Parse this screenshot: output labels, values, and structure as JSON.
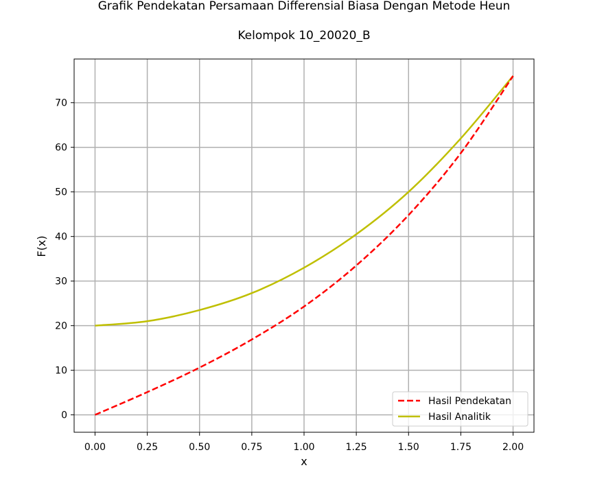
{
  "chart_data": {
    "type": "line",
    "title": "Grafik Pendekatan Persamaan Differensial Biasa Dengan Metode Heun",
    "subtitle": "Kelompok 10_20020_B",
    "xlabel": "x",
    "ylabel": "F(x)",
    "xlim": [
      -0.1,
      2.1
    ],
    "ylim": [
      -3.9,
      79.8
    ],
    "xticks": [
      0.0,
      0.25,
      0.5,
      0.75,
      1.0,
      1.25,
      1.5,
      1.75,
      2.0
    ],
    "xtick_labels": [
      "0.00",
      "0.25",
      "0.50",
      "0.75",
      "1.00",
      "1.25",
      "1.50",
      "1.75",
      "2.00"
    ],
    "yticks": [
      0,
      10,
      20,
      30,
      40,
      50,
      60,
      70
    ],
    "ytick_labels": [
      "0",
      "10",
      "20",
      "30",
      "40",
      "50",
      "60",
      "70"
    ],
    "grid": true,
    "legend_position": "bottom-right",
    "series": [
      {
        "name": "Hasil Pendekatan",
        "color": "#ff0000",
        "style": "dashed",
        "x": [
          0.0,
          0.25,
          0.5,
          0.75,
          1.0,
          1.25,
          1.5,
          1.75,
          2.0
        ],
        "y": [
          0.0,
          5.1,
          10.6,
          16.9,
          24.3,
          33.5,
          44.8,
          58.7,
          76.0
        ]
      },
      {
        "name": "Hasil Analitik",
        "color": "#bfbf00",
        "style": "solid",
        "x": [
          0.0,
          0.25,
          0.5,
          0.75,
          1.0,
          1.25,
          1.5,
          1.75,
          2.0
        ],
        "y": [
          20.0,
          21.0,
          23.5,
          27.3,
          33.0,
          40.5,
          50.0,
          62.0,
          76.0
        ]
      }
    ]
  }
}
